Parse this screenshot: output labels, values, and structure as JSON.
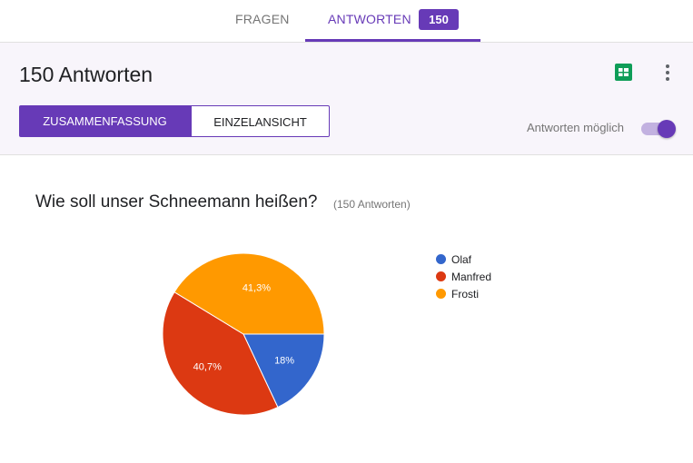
{
  "tabs": {
    "fragen": "FRAGEN",
    "antworten": "ANTWORTEN",
    "badge": "150"
  },
  "header": {
    "title": "150 Antworten",
    "summary_button": "ZUSAMMENFASSUNG",
    "individual_button": "EINZELANSICHT",
    "toggle_label": "Antworten möglich",
    "toggle_on": true
  },
  "colors": {
    "accent": "#673ab7",
    "olaf": "#3366cc",
    "manfred": "#dc3912",
    "frosti": "#ff9900",
    "sheets": "#0f9d58"
  },
  "icons": [
    "sheets-icon",
    "more-vert-icon"
  ],
  "question": {
    "title": "Wie soll unser Schneemann heißen?",
    "count": "(150 Antworten)"
  },
  "chart_data": {
    "type": "pie",
    "categories": [
      "Olaf",
      "Manfred",
      "Frosti"
    ],
    "values": [
      18,
      40.7,
      41.3
    ],
    "labels": [
      "18%",
      "40,7%",
      "41,3%"
    ],
    "colors": [
      "#3366cc",
      "#dc3912",
      "#ff9900"
    ],
    "legend": "right"
  }
}
